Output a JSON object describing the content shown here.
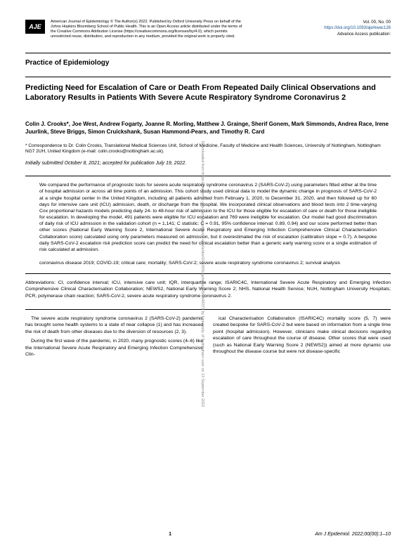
{
  "header": {
    "logo_text": "AJE",
    "journal_meta": "American Journal of Epidemiology\n© The Author(s) 2022. Published by Oxford University Press on behalf of the Johns Hopkins Bloomberg School of Public Health. This is an Open Access article distributed under the terms of the Creative Commons Attribution License (https://creativecommons.org/licenses/by/4.0), which permits unrestricted reuse, distribution, and reproduction in any medium, provided the original work is properly cited.",
    "vol": "Vol. 00, No. 00",
    "doi": "https://doi.org/10.1093/aje/kwac126",
    "pub": "Advance Access publication:"
  },
  "section_label": "Practice of Epidemiology",
  "title": "Predicting Need for Escalation of Care or Death From Repeated Daily Clinical Observations and Laboratory Results in Patients With Severe Acute Respiratory Syndrome Coronavirus 2",
  "authors": "Colin J. Crooks*, Joe West, Andrew Fogarty, Joanne R. Morling, Matthew J. Grainge, Sherif Gonem, Mark Simmonds, Andrea Race, Irene Juurlink, Steve Briggs, Simon Cruickshank, Susan Hammond-Pears, and Timothy R. Card",
  "correspondence": "* Correspondence to Dr. Colin Crooks, Translational Medical Sciences Unit, School of Medicine, Faculty of Medicine and Health Sciences, University of Nottingham, Nottingham NG7 2UH, United Kingdom (e-mail: colin.crooks@nottingham.ac.uk).",
  "dates": "Initially submitted October 8, 2021; accepted for publication July 19, 2022.",
  "abstract": "We compared the performance of prognostic tools for severe acute respiratory syndrome coronavirus 2 (SARS-CoV-2) using parameters fitted either at the time of hospital admission or across all time points of an admission. This cohort study used clinical data to model the dynamic change in prognosis of SARS-CoV-2 at a single hospital center in the United Kingdom, including all patients admitted from February 1, 2020, to December 31, 2020, and then followed up for 60 days for intensive care unit (ICU) admission, death, or discharge from the hospital. We incorporated clinical observations and blood tests into 2 time-varying Cox proportional hazards models predicting daily 24- to 48-hour risk of admission to the ICU for those eligible for escalation of care or death for those ineligible for escalation. In developing the model, 491 patients were eligible for ICU escalation and 769 were ineligible for escalation. Our model had good discrimination of daily risk of ICU admission in the validation cohort (n = 1,141; C statistic: C = 0.91, 95% confidence interval: 0.89, 0.94) and our score performed better than other scores (National Early Warning Score 2, International Severe Acute Respiratory and Emerging Infection Comprehensive Clinical Characterisation Collaboration score) calculated using only parameters measured on admission, but it overestimated the risk of escalation (calibration slope = 0.7). A bespoke daily SARS-CoV-2 escalation risk prediction score can predict the need for clinical escalation better than a generic early warning score or a single estimation of risk calculated at admission.",
  "keywords": "coronavirus disease 2019; COVID-19; critical care; mortality; SARS-CoV-2; severe acute respiratory syndrome coronavirus 2; survival analysis",
  "abbreviations": "Abbreviations: CI, confidence interval; ICU, intensive care unit; IQR, interquartile range; ISARIC4C, International Severe Acute Respiratory and Emerging Infection Comprehensive Clinical Characterisation Collaboration; NEWS2, National Early Warning Score 2; NHS, National Health Service; NUH, Nottingham University Hospitals; PCR, polymerase chain reaction; SARS-CoV-2, severe acute respiratory syndrome coronavirus 2.",
  "body": {
    "col1_p1": "The severe acute respiratory syndrome coronavirus 2 (SARS-CoV-2) pandemic has brought some health systems to a state of near collapse (1) and has increased the risk of death from other diseases due to the diversion of resources (2, 3).",
    "col1_p2": "During the first wave of the pandemic, in 2020, many prognostic scores (4–6) like the International Severe Acute Respiratory and Emerging Infection Comprehensive Clin-",
    "col2_p1": "ical Characterisation Collaboration (ISARIC4C) mortality score (5, 7) were created bespoke for SARS-CoV-2 but were based on information from a single time point (hospital admission). However, clinicians make clinical decisions regarding escalation of care throughout the course of disease. Other scores that were used (such as National Early Warning Score 2 (NEWS2)) aimed at more dynamic use throughout the disease course but were not disease-specific"
  },
  "footer": {
    "page": "1",
    "cite": "Am J Epidemiol. 2022;00(00):1–10"
  },
  "side": "Downloaded from https://academic.oup.com/aje/advance-article/doi/10.1093/aje/kwac126/6648373 by University of Nottingham user on 13 September 2022"
}
